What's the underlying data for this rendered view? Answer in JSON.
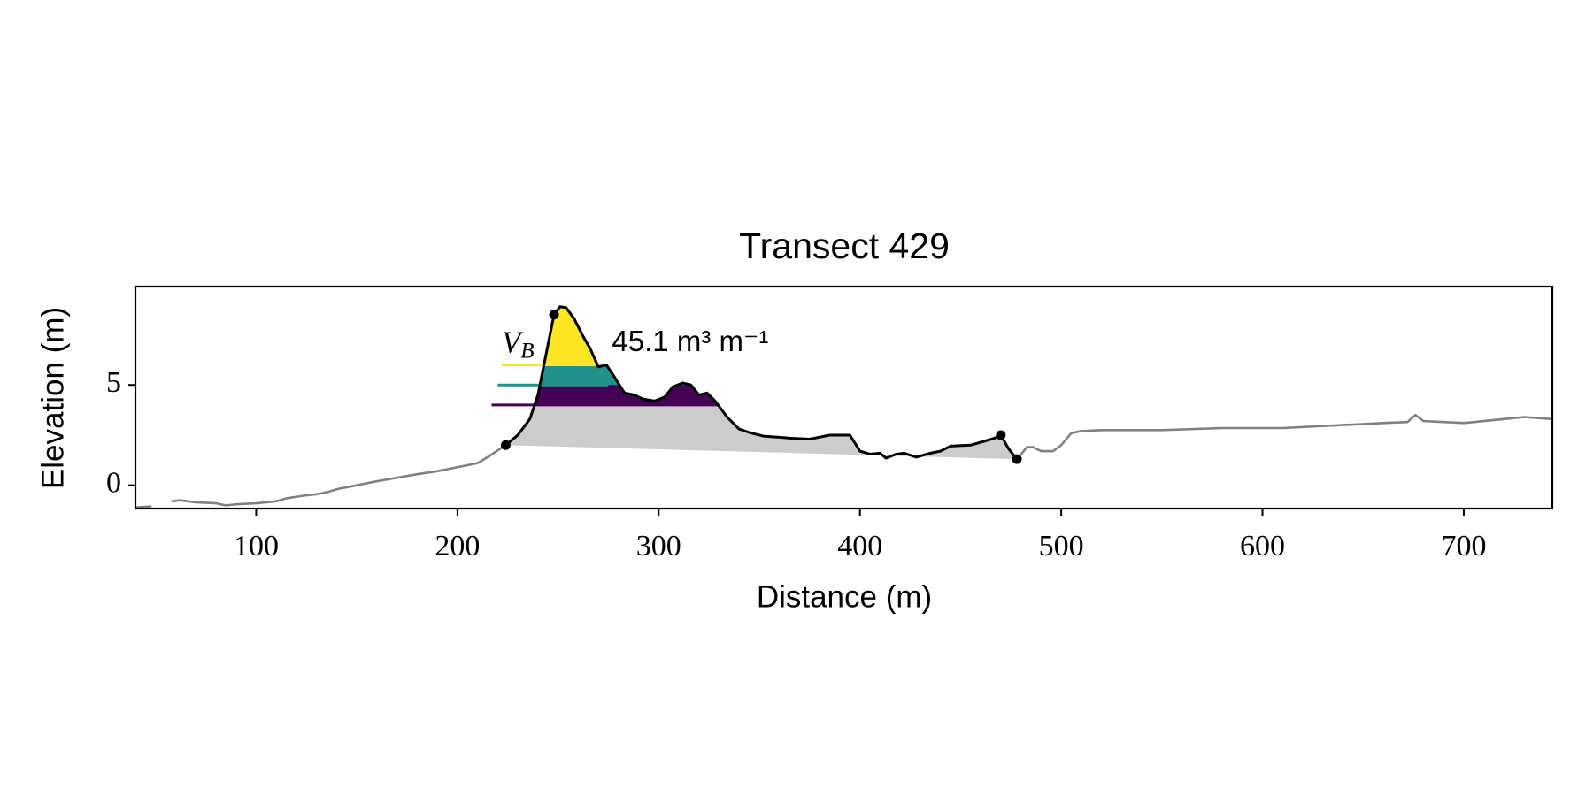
{
  "chart_data": {
    "type": "line",
    "title": "Transect 429",
    "xlabel": "Distance (m)",
    "ylabel": "Elevation (m)",
    "xlim": [
      40,
      744
    ],
    "ylim": [
      -1.16,
      9.9
    ],
    "xticks": [
      100,
      200,
      300,
      400,
      500,
      600,
      700
    ],
    "yticks": [
      0,
      5
    ],
    "series": [
      {
        "color": "#808080",
        "x": [
          40,
          48,
          52,
          58,
          62,
          70,
          80,
          85,
          90,
          100,
          110,
          115,
          125,
          130,
          135,
          140,
          145,
          160,
          180,
          190,
          200,
          210,
          215,
          224
        ],
        "values": [
          -1.1,
          -1.05,
          null,
          -0.8,
          -0.75,
          -0.85,
          -0.9,
          -1.0,
          -0.95,
          -0.9,
          -0.8,
          -0.65,
          -0.5,
          -0.45,
          -0.35,
          -0.2,
          -0.1,
          0.2,
          0.55,
          0.7,
          0.9,
          1.1,
          1.4,
          2.0
        ]
      },
      {
        "color": "#808080",
        "x": [
          478,
          483,
          486,
          490,
          496,
          500,
          505,
          510,
          520,
          550,
          580,
          610,
          640,
          660,
          672,
          676,
          680,
          700,
          720,
          730,
          744
        ],
        "values": [
          1.3,
          1.9,
          1.9,
          1.7,
          1.7,
          2.0,
          2.6,
          2.7,
          2.75,
          2.75,
          2.85,
          2.85,
          3.0,
          3.1,
          3.15,
          3.5,
          3.2,
          3.1,
          3.3,
          3.4,
          3.3
        ]
      },
      {
        "color": "#000000",
        "dune": true,
        "x": [
          224,
          230,
          236,
          240,
          244,
          248,
          251,
          254,
          258,
          262,
          266,
          270,
          274,
          278,
          283,
          288,
          292,
          298,
          303,
          307,
          312,
          316,
          320,
          324,
          328,
          334,
          340,
          346,
          352,
          365,
          375,
          385,
          395,
          400,
          405,
          410,
          413,
          418,
          422,
          428,
          435,
          440,
          445,
          455,
          462,
          467,
          470,
          474,
          478
        ],
        "values": [
          2.0,
          2.5,
          3.3,
          4.5,
          6.5,
          8.5,
          8.9,
          8.85,
          8.3,
          7.5,
          6.8,
          5.9,
          6.0,
          5.4,
          4.6,
          4.5,
          4.3,
          4.2,
          4.4,
          4.9,
          5.1,
          5.0,
          4.5,
          4.6,
          4.2,
          3.4,
          2.8,
          2.6,
          2.45,
          2.35,
          2.3,
          2.5,
          2.5,
          1.7,
          1.55,
          1.6,
          1.35,
          1.55,
          1.6,
          1.4,
          1.6,
          1.7,
          1.95,
          2.0,
          2.2,
          2.35,
          2.5,
          1.8,
          1.3
        ]
      }
    ],
    "fill_color": "#cccccc",
    "levels": [
      {
        "value": 4,
        "color": "#440154",
        "x": [
          217,
          330
        ]
      },
      {
        "value": 5,
        "color": "#21918c",
        "x": [
          220,
          275
        ]
      },
      {
        "value": 6,
        "color": "#fde725",
        "x": [
          222,
          270
        ]
      }
    ],
    "markers": {
      "x": [
        224,
        248,
        470,
        478
      ],
      "values": [
        2.0,
        8.5,
        2.5,
        1.3
      ]
    },
    "annotation": {
      "symbol": "V",
      "subscript": "B",
      "text": "45.1 m³ m⁻¹"
    }
  }
}
